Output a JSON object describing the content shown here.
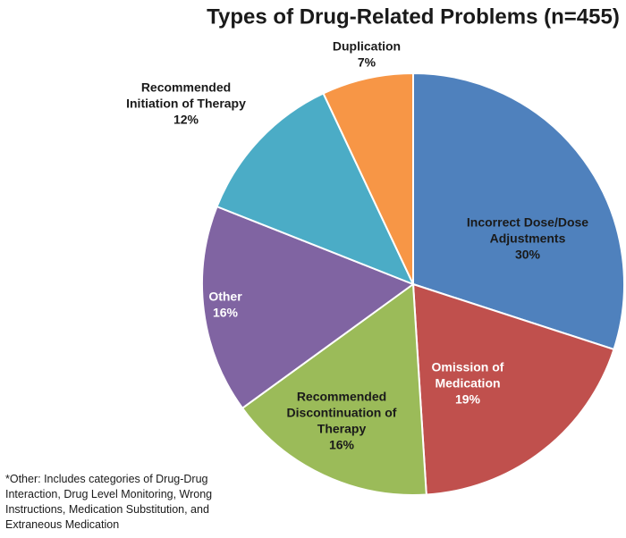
{
  "chart_data": {
    "type": "pie",
    "title": "Types of Drug-Related Problems (n=455)",
    "start_angle_deg": 0,
    "direction": "clockwise",
    "slices": [
      {
        "label_lines": [
          "Incorrect Dose/Dose",
          "Adjustments"
        ],
        "value": 30,
        "value_label": "30%",
        "color": "#4f81bd",
        "label_color": "#1a1a1a"
      },
      {
        "label_lines": [
          "Omission of",
          "Medication"
        ],
        "value": 19,
        "value_label": "19%",
        "color": "#c0504d",
        "label_color": "#ffffff"
      },
      {
        "label_lines": [
          "Recommended",
          "Discontinuation of",
          "Therapy"
        ],
        "value": 16,
        "value_label": "16%",
        "color": "#9bbb59",
        "label_color": "#1a1a1a"
      },
      {
        "label_lines": [
          "Other"
        ],
        "value": 16,
        "value_label": "16%",
        "color": "#8064a2",
        "label_color": "#ffffff"
      },
      {
        "label_lines": [
          "Recommended",
          "Initiation of Therapy"
        ],
        "value": 12,
        "value_label": "12%",
        "color": "#4bacc6",
        "label_color": "#1a1a1a"
      },
      {
        "label_lines": [
          "Duplication"
        ],
        "value": 7,
        "value_label": "7%",
        "color": "#f79646",
        "label_color": "#1a1a1a"
      }
    ]
  },
  "footnote": {
    "lines": [
      "*Other:  Includes categories of Drug-Drug",
      "Interaction, Drug Level  Monitoring, Wrong",
      "Instructions, Medication Substitution, and",
      "Extraneous Medication"
    ]
  }
}
